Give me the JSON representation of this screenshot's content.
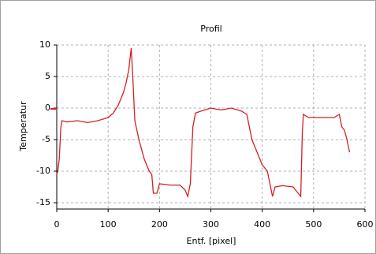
{
  "chart_data": {
    "type": "line",
    "title": "Profil",
    "x_label": "Entf. [pixel]",
    "y_label": "Temperatur",
    "x": [
      0,
      2,
      5,
      8,
      10,
      20,
      40,
      60,
      80,
      100,
      110,
      120,
      130,
      135,
      140,
      145,
      148,
      152,
      160,
      170,
      180,
      185,
      188,
      195,
      200,
      220,
      240,
      250,
      255,
      260,
      265,
      270,
      280,
      300,
      320,
      340,
      360,
      370,
      375,
      380,
      390,
      400,
      410,
      415,
      420,
      425,
      440,
      460,
      470,
      475,
      478,
      480,
      490,
      500,
      520,
      540,
      550,
      555,
      560,
      565,
      570
    ],
    "series": [
      {
        "name": "Profil",
        "color": "#d42020",
        "values": [
          -10.5,
          -10,
          -8,
          -3,
          -2,
          -2.2,
          -2,
          -2.3,
          -2,
          -1.5,
          -0.8,
          0.5,
          2.5,
          4,
          6,
          9.5,
          5,
          -2,
          -5,
          -8,
          -10,
          -10.5,
          -13.5,
          -13.5,
          -12,
          -12.2,
          -12.2,
          -13,
          -14,
          -12,
          -3,
          -0.8,
          -0.5,
          0,
          -0.3,
          0,
          -0.5,
          -1,
          -3,
          -5,
          -7,
          -9,
          -10,
          -12,
          -14,
          -12.5,
          -12.3,
          -12.5,
          -13.5,
          -14,
          -4,
          -1,
          -1.5,
          -1.5,
          -1.5,
          -1.5,
          -1,
          -3,
          -3.5,
          -5,
          -7
        ]
      }
    ],
    "xlim": [
      0,
      600
    ],
    "ylim": [
      -16,
      10
    ],
    "xticks": [
      0,
      100,
      200,
      300,
      400,
      500,
      600
    ],
    "yticks": [
      10,
      5,
      0,
      -5,
      -10,
      -15
    ],
    "grid": true
  }
}
